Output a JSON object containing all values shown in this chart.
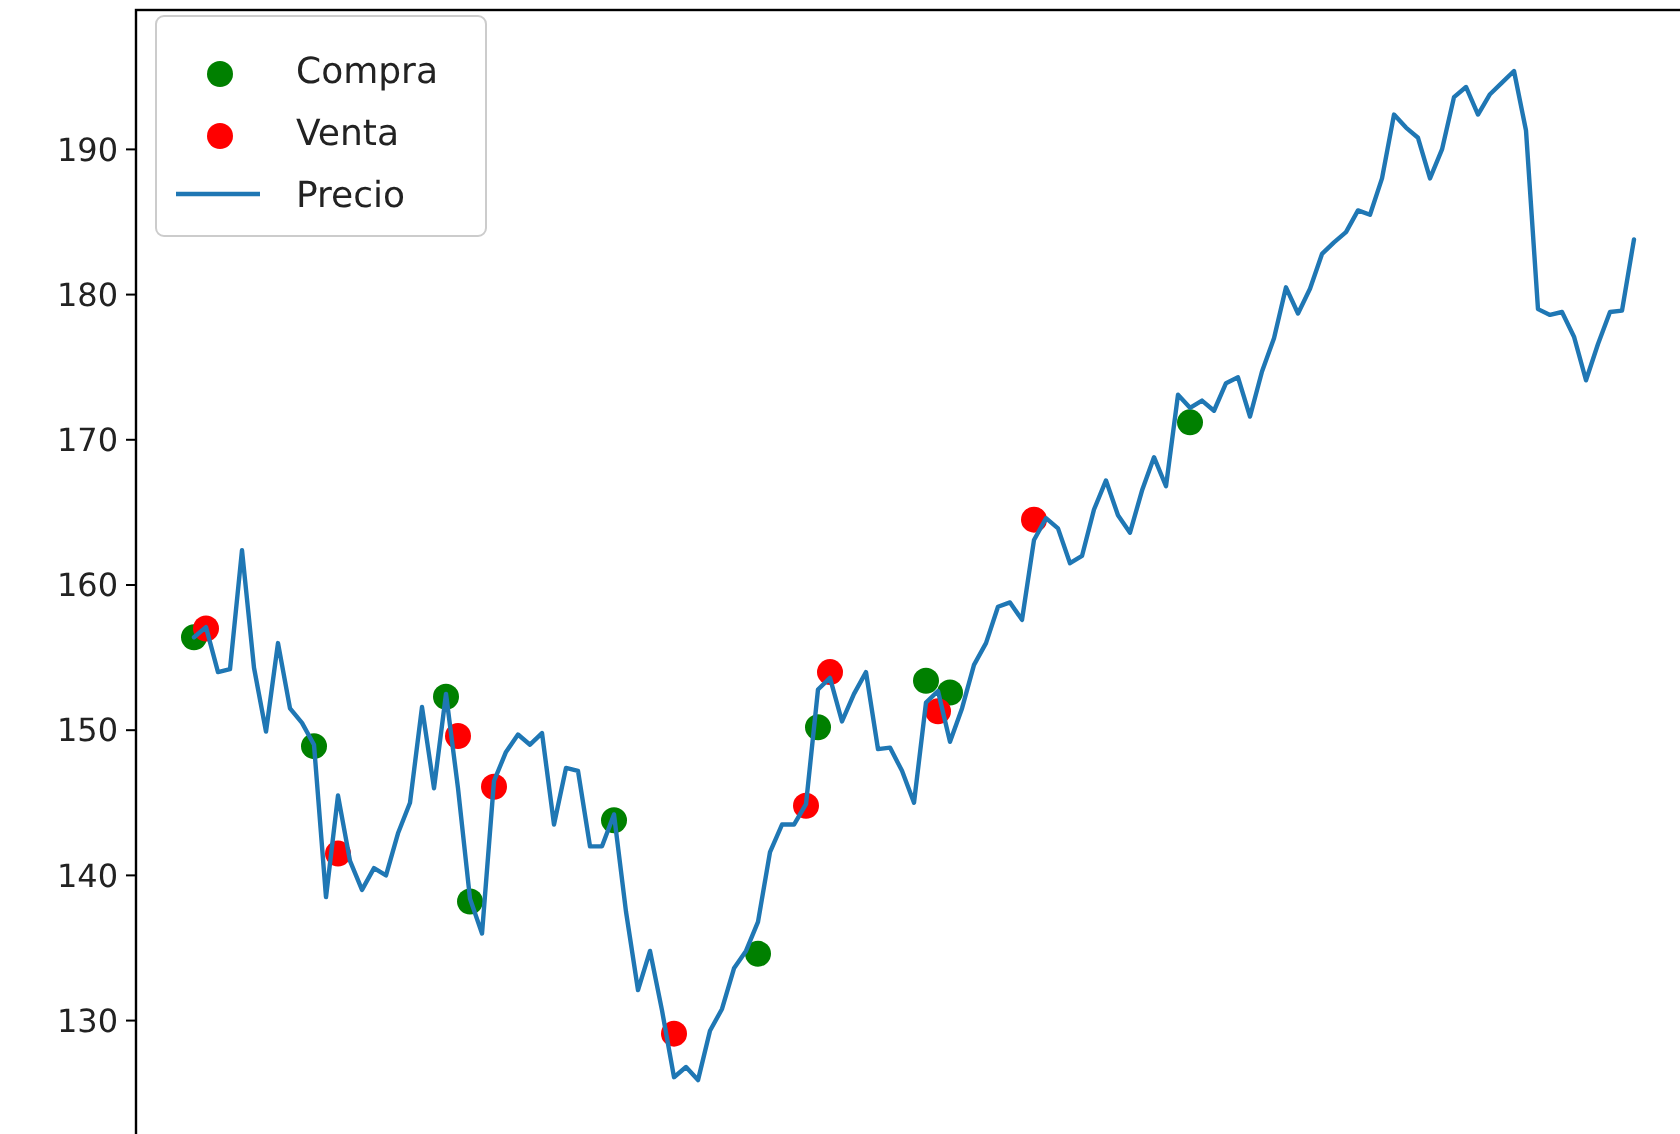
{
  "chart_data": {
    "type": "line",
    "categories": [
      null,
      null,
      null,
      null,
      null,
      null,
      null,
      null,
      null,
      null,
      null,
      null,
      null,
      null,
      null,
      null,
      null,
      null,
      null,
      null,
      null,
      null,
      null,
      null,
      null,
      null,
      null,
      null,
      null,
      null,
      null,
      null,
      null,
      null,
      null,
      null,
      null,
      null,
      null,
      null,
      null,
      null,
      null,
      null,
      null,
      null,
      null,
      null,
      null,
      null,
      null,
      null,
      null,
      null,
      null,
      null,
      null,
      null,
      null,
      null,
      null,
      null,
      null,
      null,
      null,
      null,
      null,
      null,
      null,
      null,
      null,
      null,
      null,
      null,
      null,
      null,
      null,
      null,
      null,
      null,
      null,
      null,
      null,
      null,
      null,
      null,
      null,
      null,
      null,
      null,
      null,
      null,
      null,
      null,
      null,
      null,
      null,
      null,
      null,
      null,
      null,
      null,
      null,
      null,
      null,
      null,
      null,
      null,
      null,
      null,
      null,
      null,
      null,
      null,
      null,
      null,
      null,
      null,
      null,
      null,
      null
    ],
    "ylim": [
      121.5,
      199.6
    ],
    "yticks": [
      130,
      140,
      150,
      160,
      170,
      180,
      190
    ],
    "tick_labels": "y",
    "legend": "top left",
    "series": [
      {
        "name": "Compra",
        "type": "scatter",
        "color": "#008000",
        "values": [
          156.4,
          null,
          null,
          null,
          null,
          null,
          null,
          null,
          null,
          null,
          148.9,
          null,
          null,
          null,
          null,
          null,
          null,
          null,
          null,
          null,
          null,
          152.3,
          null,
          138.2,
          null,
          null,
          null,
          null,
          null,
          null,
          null,
          null,
          null,
          null,
          null,
          143.8,
          null,
          null,
          null,
          null,
          null,
          null,
          null,
          null,
          null,
          null,
          null,
          134.6,
          null,
          null,
          null,
          null,
          150.2,
          null,
          null,
          null,
          null,
          null,
          null,
          null,
          null,
          153.4,
          null,
          152.6,
          null,
          null,
          null,
          null,
          null,
          null,
          null,
          null,
          null,
          null,
          null,
          null,
          null,
          null,
          null,
          null,
          null,
          null,
          null,
          171.2,
          null,
          null,
          null,
          null,
          null,
          null,
          null,
          null,
          null,
          null,
          null,
          null,
          null,
          null,
          null,
          null,
          null,
          null,
          null,
          null,
          null,
          null,
          null,
          null,
          null,
          null,
          null,
          null,
          null,
          null,
          null,
          null,
          null,
          null,
          null,
          null,
          null
        ]
      },
      {
        "name": "Venta",
        "type": "scatter",
        "color": "#ff0000",
        "values": [
          null,
          157.0,
          null,
          null,
          null,
          null,
          null,
          null,
          null,
          null,
          null,
          null,
          141.5,
          null,
          null,
          null,
          null,
          null,
          null,
          null,
          null,
          null,
          149.6,
          null,
          null,
          146.1,
          null,
          null,
          null,
          null,
          null,
          null,
          null,
          null,
          null,
          null,
          null,
          null,
          null,
          null,
          129.1,
          null,
          null,
          null,
          null,
          null,
          null,
          null,
          null,
          null,
          null,
          144.8,
          null,
          154.0,
          null,
          null,
          null,
          null,
          null,
          null,
          null,
          null,
          151.3,
          null,
          null,
          null,
          null,
          null,
          null,
          null,
          164.5,
          null,
          null,
          null,
          null,
          null,
          null,
          null,
          null,
          null,
          null,
          null,
          null,
          null,
          null,
          null,
          null,
          null,
          null,
          null,
          null,
          null,
          null,
          null,
          null,
          null,
          null,
          null,
          null,
          null,
          null,
          null,
          null,
          null,
          null,
          null,
          null,
          null,
          null,
          null,
          null,
          null,
          null,
          null,
          null,
          null,
          null,
          null,
          null,
          null,
          null
        ]
      },
      {
        "name": "Precio",
        "color": "#1f77b4",
        "values": [
          156.4,
          157.1,
          154.0,
          154.2,
          162.4,
          154.3,
          149.9,
          156.0,
          151.5,
          150.5,
          149.0,
          138.5,
          145.5,
          141.0,
          139.0,
          140.5,
          140.0,
          142.9,
          145.0,
          151.6,
          146.0,
          152.5,
          146.0,
          138.4,
          136.0,
          146.5,
          148.5,
          149.7,
          149.0,
          149.8,
          143.5,
          147.4,
          147.2,
          142.0,
          142.0,
          144.2,
          137.5,
          132.1,
          134.8,
          130.7,
          126.1,
          126.8,
          125.9,
          129.3,
          130.8,
          133.6,
          134.8,
          136.8,
          141.6,
          143.5,
          143.5,
          144.9,
          152.8,
          153.6,
          150.6,
          152.5,
          154.0,
          148.7,
          148.8,
          147.2,
          145.0,
          151.9,
          152.7,
          149.2,
          151.5,
          154.5,
          156.0,
          158.5,
          158.8,
          157.6,
          163.1,
          164.6,
          163.9,
          161.5,
          162.0,
          165.2,
          167.2,
          164.8,
          163.6,
          166.5,
          168.8,
          166.8,
          173.1,
          172.2,
          172.7,
          172.0,
          173.9,
          174.3,
          171.6,
          174.7,
          177.0,
          180.5,
          178.7,
          180.4,
          182.8,
          183.6,
          184.3,
          185.8,
          185.5,
          188.0,
          192.4,
          191.5,
          190.8,
          188.0,
          190.0,
          193.6,
          194.3,
          192.4,
          193.8,
          194.6,
          195.4,
          191.3,
          179.0,
          178.6,
          178.8,
          177.1,
          174.1,
          176.6,
          178.8,
          178.9,
          183.8
        ]
      }
    ]
  }
}
